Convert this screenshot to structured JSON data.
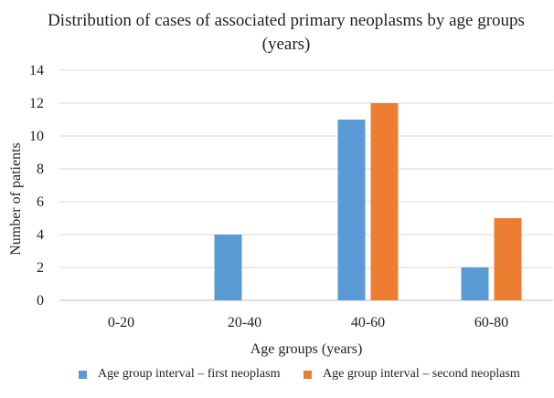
{
  "chart_data": {
    "type": "bar",
    "title": "Distribution of cases of associated primary neoplasms by age groups (years)",
    "xlabel": "Age groups (years)",
    "ylabel": "Number of patients",
    "categories": [
      "0-20",
      "20-40",
      "40-60",
      "60-80"
    ],
    "series": [
      {
        "name": "Age group interval – first neoplasm",
        "color": "#5b9bd5",
        "values": [
          0,
          4,
          11,
          2
        ]
      },
      {
        "name": "Age group interval – second neoplasm",
        "color": "#ed7d31",
        "values": [
          0,
          0,
          12,
          5
        ]
      }
    ],
    "ylim": [
      0,
      14
    ],
    "yticks": [
      0,
      2,
      4,
      6,
      8,
      10,
      12,
      14
    ],
    "grid": true,
    "legend_position": "bottom"
  }
}
